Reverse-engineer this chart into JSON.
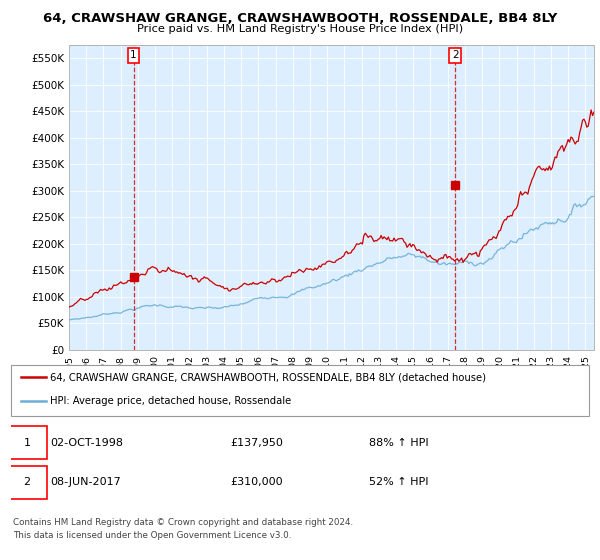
{
  "title1": "64, CRAWSHAW GRANGE, CRAWSHAWBOOTH, ROSSENDALE, BB4 8LY",
  "title2": "Price paid vs. HM Land Registry's House Price Index (HPI)",
  "ylabel_ticks": [
    "£0",
    "£50K",
    "£100K",
    "£150K",
    "£200K",
    "£250K",
    "£300K",
    "£350K",
    "£400K",
    "£450K",
    "£500K",
    "£550K"
  ],
  "ylabel_values": [
    0,
    50000,
    100000,
    150000,
    200000,
    250000,
    300000,
    350000,
    400000,
    450000,
    500000,
    550000
  ],
  "ylim": [
    0,
    575000
  ],
  "xlim_start": 1995.0,
  "xlim_end": 2025.5,
  "t1_x": 1998.75,
  "t1_price": 137950,
  "t2_x": 2017.44,
  "t2_price": 310000,
  "legend_line1": "64, CRAWSHAW GRANGE, CRAWSHAWBOOTH, ROSSENDALE, BB4 8LY (detached house)",
  "legend_line2": "HPI: Average price, detached house, Rossendale",
  "table_row1": [
    "1",
    "02-OCT-1998",
    "£137,950",
    "88% ↑ HPI"
  ],
  "table_row2": [
    "2",
    "08-JUN-2017",
    "£310,000",
    "52% ↑ HPI"
  ],
  "footer1": "Contains HM Land Registry data © Crown copyright and database right 2024.",
  "footer2": "This data is licensed under the Open Government Licence v3.0.",
  "hpi_color": "#6baed6",
  "price_color": "#cc0000",
  "bg_color": "#ffffff",
  "plot_bg_color": "#ddeeff",
  "grid_color": "#ffffff"
}
